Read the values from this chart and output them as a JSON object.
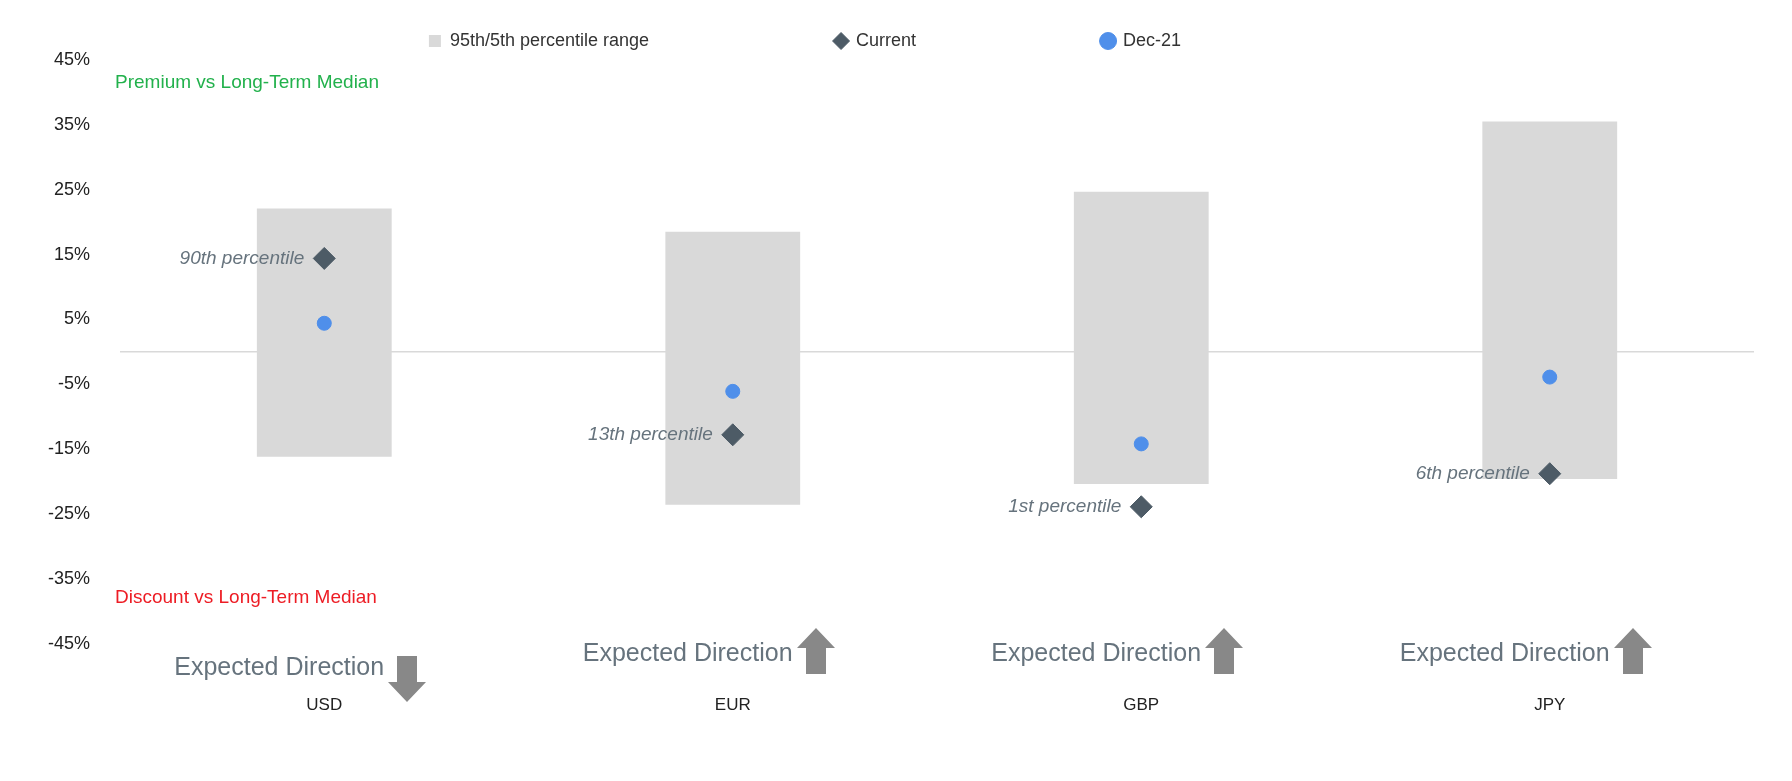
{
  "chart_data": {
    "type": "bar",
    "categories": [
      "USD",
      "EUR",
      "GBP",
      "JPY"
    ],
    "series": [
      {
        "name": "95th/5th percentile range",
        "color": "#d9d9d9",
        "base": [
          -16.2,
          -23.6,
          -20.4,
          -19.6
        ],
        "values": [
          38.3,
          42.1,
          45.1,
          55.1
        ]
      },
      {
        "name": "Current",
        "type": "scatter",
        "marker": "diamond",
        "color": "#4d5b66",
        "x": [
          "USD",
          "EUR",
          "GBP",
          "JPY"
        ],
        "values": [
          14.4,
          -12.8,
          -23.9,
          -18.8
        ]
      },
      {
        "name": "Dec-21",
        "type": "scatter",
        "marker": "circle",
        "color": "#4f8fea",
        "x": [
          "USD",
          "EUR",
          "GBP",
          "JPY"
        ],
        "values": [
          4.4,
          -6.1,
          -14.2,
          -3.9
        ]
      }
    ],
    "ylim": [
      -45,
      45
    ],
    "yticks": [
      {
        "value": -45,
        "label": "-45%"
      },
      {
        "value": -35,
        "label": "-35%"
      },
      {
        "value": -25,
        "label": "-25%"
      },
      {
        "value": -15,
        "label": "-15%"
      },
      {
        "value": -5,
        "label": "-5%"
      },
      {
        "value": 5,
        "label": "5%"
      },
      {
        "value": 15,
        "label": "15%"
      },
      {
        "value": 25,
        "label": "25%"
      },
      {
        "value": 35,
        "label": "35%"
      },
      {
        "value": 45,
        "label": "45%"
      }
    ],
    "ref_lines": [
      {
        "axis": "y",
        "value": 0,
        "color": "#d9d9d9"
      }
    ],
    "grid": false,
    "legend": "top",
    "annotations": [
      "Premium vs Long-Term Median",
      "Discount vs Long-Term Median",
      {
        "text": "90th percentile",
        "x": "USD",
        "y": 14.4
      },
      {
        "text": "13th percentile",
        "x": "EUR",
        "y": -12.8
      },
      {
        "text": "1st percentile",
        "x": "GBP",
        "y": -23.9
      },
      {
        "text": "6th percentile",
        "x": "JPY",
        "y": -18.8
      },
      "Expected Direction",
      "Expected Direction",
      "Expected Direction",
      "Expected Direction"
    ]
  }
}
